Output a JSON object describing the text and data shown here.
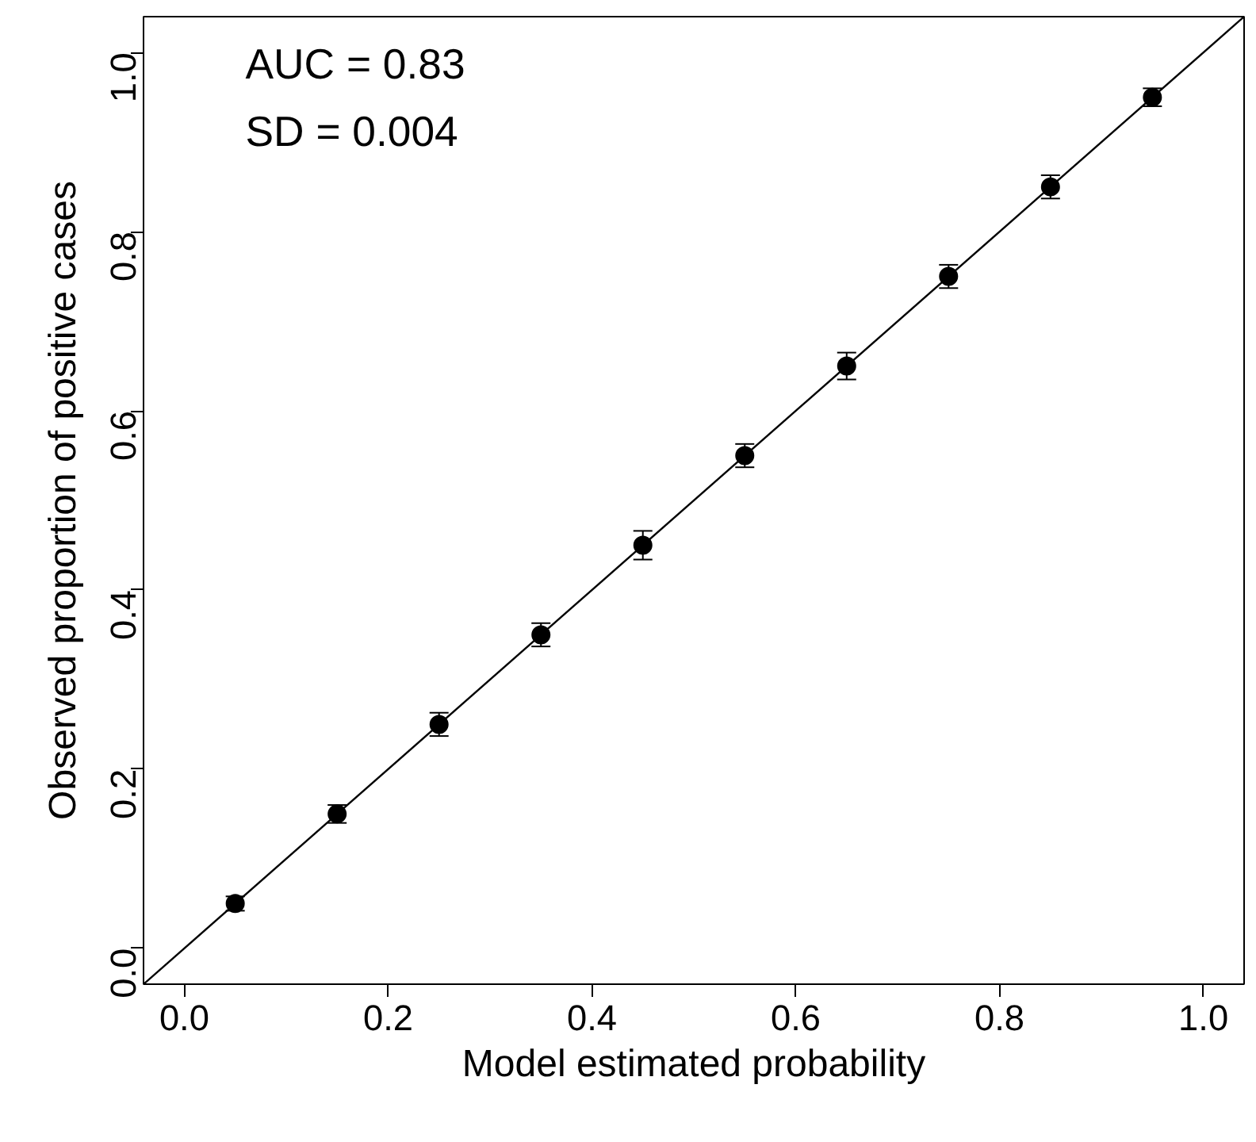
{
  "chart_data": {
    "type": "scatter",
    "xlabel": "Model estimated probability",
    "ylabel": "Observed proportion of positive cases",
    "x": [
      0.05,
      0.15,
      0.25,
      0.35,
      0.45,
      0.55,
      0.65,
      0.75,
      0.85,
      0.95
    ],
    "series": [
      {
        "color": "#000000",
        "values": [
          0.05,
          0.15,
          0.25,
          0.35,
          0.45,
          0.55,
          0.65,
          0.75,
          0.85,
          0.95
        ],
        "errors": [
          0.008,
          0.01,
          0.013,
          0.013,
          0.016,
          0.013,
          0.015,
          0.013,
          0.013,
          0.01
        ]
      },
      {
        "type": "line",
        "marker": "none",
        "color": "#000000",
        "x": [
          -0.04,
          1.04
        ],
        "values": [
          -0.04,
          1.04
        ]
      }
    ],
    "annotations": [
      "AUC =  0.83",
      "SD =  0.004"
    ],
    "xlim": [
      -0.04,
      1.04
    ],
    "ylim": [
      -0.04,
      1.04
    ],
    "xticks": [
      {
        "value": 0,
        "label": "0.0"
      },
      0.2,
      0.4,
      0.6,
      0.8,
      {
        "value": 1,
        "label": "1.0"
      }
    ],
    "yticks": [
      {
        "value": 0,
        "label": "0.0"
      },
      0.2,
      0.4,
      0.6,
      0.8,
      {
        "value": 1,
        "label": "1.0"
      }
    ],
    "grid": false,
    "marker": "circle",
    "line_style": "solid"
  }
}
